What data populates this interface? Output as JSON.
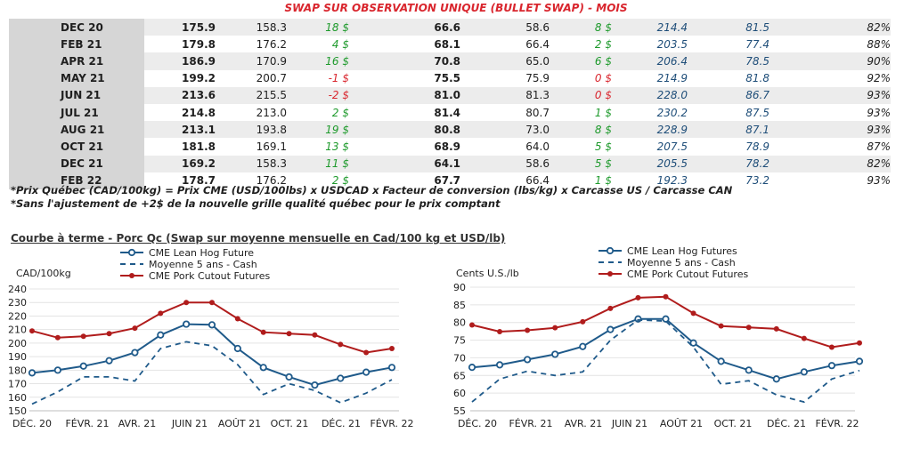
{
  "table": {
    "title": "SWAP SUR OBSERVATION UNIQUE (BULLET SWAP) - MOIS",
    "rows": [
      {
        "month": "DEC 20",
        "c1": "175.9",
        "c2": "158.3",
        "c3": "18 $",
        "c4": "66.6",
        "c5": "58.6",
        "c6": "8 $",
        "c7": "214.4",
        "c8": "81.5",
        "c9": "82%"
      },
      {
        "month": "FEB 21",
        "c1": "179.8",
        "c2": "176.2",
        "c3": "4 $",
        "c4": "68.1",
        "c5": "66.4",
        "c6": "2 $",
        "c7": "203.5",
        "c8": "77.4",
        "c9": "88%"
      },
      {
        "month": "APR 21",
        "c1": "186.9",
        "c2": "170.9",
        "c3": "16 $",
        "c4": "70.8",
        "c5": "65.0",
        "c6": "6 $",
        "c7": "206.4",
        "c8": "78.5",
        "c9": "90%"
      },
      {
        "month": "MAY 21",
        "c1": "199.2",
        "c2": "200.7",
        "c3": "-1 $",
        "c4": "75.5",
        "c5": "75.9",
        "c6": "0 $",
        "c7": "214.9",
        "c8": "81.8",
        "c9": "92%"
      },
      {
        "month": "JUN 21",
        "c1": "213.6",
        "c2": "215.5",
        "c3": "-2 $",
        "c4": "81.0",
        "c5": "81.3",
        "c6": "0 $",
        "c7": "228.0",
        "c8": "86.7",
        "c9": "93%"
      },
      {
        "month": "JUL 21",
        "c1": "214.8",
        "c2": "213.0",
        "c3": "2 $",
        "c4": "81.4",
        "c5": "80.7",
        "c6": "1 $",
        "c7": "230.2",
        "c8": "87.5",
        "c9": "93%"
      },
      {
        "month": "AUG 21",
        "c1": "213.1",
        "c2": "193.8",
        "c3": "19 $",
        "c4": "80.8",
        "c5": "73.0",
        "c6": "8 $",
        "c7": "228.9",
        "c8": "87.1",
        "c9": "93%"
      },
      {
        "month": "OCT 21",
        "c1": "181.8",
        "c2": "169.1",
        "c3": "13 $",
        "c4": "68.9",
        "c5": "64.0",
        "c6": "5 $",
        "c7": "207.5",
        "c8": "78.9",
        "c9": "87%"
      },
      {
        "month": "DEC 21",
        "c1": "169.2",
        "c2": "158.3",
        "c3": "11 $",
        "c4": "64.1",
        "c5": "58.6",
        "c6": "5 $",
        "c7": "205.5",
        "c8": "78.2",
        "c9": "82%"
      },
      {
        "month": "FEB 22",
        "c1": "178.7",
        "c2": "176.2",
        "c3": "2 $",
        "c4": "67.7",
        "c5": "66.4",
        "c6": "1 $",
        "c7": "192.3",
        "c8": "73.2",
        "c9": "93%"
      }
    ],
    "neg_color": "#d9262e",
    "pos_color": "#1e9a2c"
  },
  "notes": {
    "note1": "*Prix Québec (CAD/100kg) = Prix CME (USD/100lbs) x USDCAD x Facteur de conversion (lbs/kg) x Carcasse US / Carcasse CAN",
    "note2": "*Sans l'ajustement de +2$ de la nouvelle grille qualité québec pour le prix comptant"
  },
  "chart_section_title": "Courbe à terme - Porc Qc (Swap sur moyenne mensuelle en Cad/100 kg et USD/lb)",
  "chart_data": [
    {
      "type": "line",
      "ylabel": "CAD/100kg",
      "ylim": [
        150,
        240
      ],
      "yticks": [
        150,
        160,
        170,
        180,
        190,
        200,
        210,
        220,
        230,
        240
      ],
      "x_tick_labels": [
        "DÉC. 20",
        "FÉVR. 21",
        "AVR. 21",
        "JUIN 21",
        "AOÛT 21",
        "OCT. 21",
        "DÉC. 21",
        "FÉVR. 22"
      ],
      "x": [
        0,
        1,
        2,
        3,
        4,
        5,
        6,
        7,
        8,
        9,
        10,
        11,
        12,
        13,
        14
      ],
      "series": [
        {
          "name": "CME Lean Hog Future",
          "style": "solid-circle",
          "color": "#1f5a8a",
          "values": [
            178,
            180,
            183,
            187,
            193,
            206,
            214,
            213.5,
            196,
            182,
            175,
            169,
            174,
            178.5,
            182
          ]
        },
        {
          "name": "Moyenne 5 ans - Cash",
          "style": "dashed",
          "color": "#1f5a8a",
          "values": [
            155,
            164,
            175,
            175,
            172,
            196,
            201,
            198,
            184,
            162,
            170,
            165,
            156,
            163,
            173
          ]
        },
        {
          "name": "CME Pork Cutout Futures",
          "style": "solid-dot",
          "color": "#b01c1c",
          "values": [
            209,
            204,
            205,
            207,
            211,
            222,
            230,
            230,
            218,
            208,
            207,
            206,
            199,
            193,
            196
          ]
        }
      ]
    },
    {
      "type": "line",
      "ylabel": "Cents U.S./lb",
      "ylim": [
        55,
        90
      ],
      "yticks": [
        55,
        60,
        65,
        70,
        75,
        80,
        85,
        90
      ],
      "x_tick_labels": [
        "DÉC. 20",
        "FÉVR. 21",
        "AVR. 21",
        "JUIN 21",
        "AOÛT 21",
        "OCT. 21",
        "DÉC. 21",
        "FÉVR. 22"
      ],
      "x": [
        0,
        1,
        2,
        3,
        4,
        5,
        6,
        7,
        8,
        9,
        10,
        11,
        12,
        13,
        14
      ],
      "series": [
        {
          "name": "CME Lean Hog Futures",
          "style": "solid-circle",
          "color": "#1f5a8a",
          "values": [
            67.3,
            68,
            69.5,
            71,
            73.2,
            78,
            81,
            81,
            74.2,
            69,
            66.5,
            64,
            66,
            67.8,
            69
          ]
        },
        {
          "name": "Moyenne 5 ans - Cash",
          "style": "dashed",
          "color": "#1f5a8a",
          "values": [
            57.5,
            64,
            66.2,
            65,
            66,
            75,
            80.7,
            80.4,
            73,
            62.5,
            63.5,
            59.5,
            57.5,
            64,
            66.4
          ]
        },
        {
          "name": "CME Pork Cutout Futures",
          "style": "solid-dot",
          "color": "#b01c1c",
          "values": [
            79.3,
            77.4,
            77.8,
            78.5,
            80.2,
            84,
            87,
            87.3,
            82.6,
            79,
            78.6,
            78.2,
            75.5,
            73,
            74.2
          ]
        }
      ]
    }
  ]
}
